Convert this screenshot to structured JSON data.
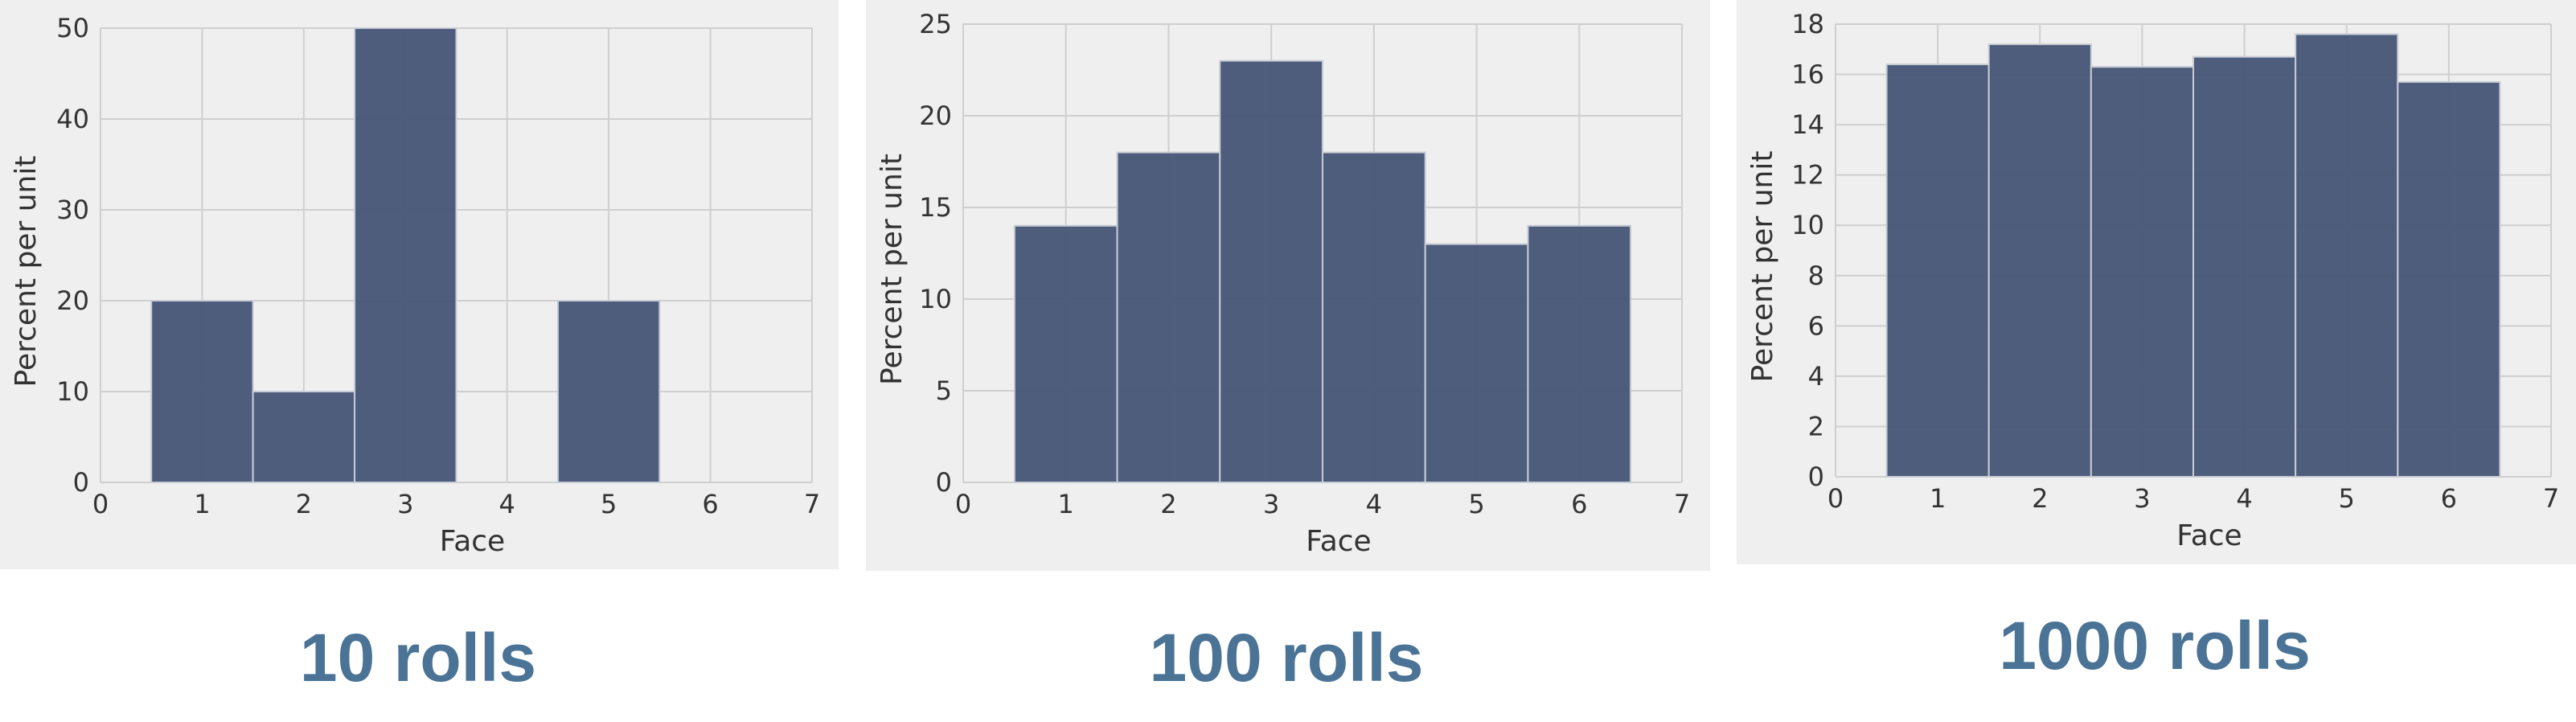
{
  "chart_data": [
    {
      "type": "bar",
      "categories": [
        "1",
        "2",
        "3",
        "4",
        "5",
        "6"
      ],
      "values": [
        20,
        10,
        50,
        0,
        20,
        0
      ],
      "xlabel": "Face",
      "ylabel": "Percent per unit",
      "xlim": [
        0,
        7
      ],
      "ylim": [
        0,
        50
      ],
      "xticks": [
        "0",
        "1",
        "2",
        "3",
        "4",
        "5",
        "6",
        "7"
      ],
      "yticks": [
        "0",
        "10",
        "20",
        "30",
        "40",
        "50"
      ],
      "grid": true,
      "bar_color": "#4a5a78",
      "background": "#efefef",
      "caption": "10 rolls"
    },
    {
      "type": "bar",
      "categories": [
        "1",
        "2",
        "3",
        "4",
        "5",
        "6"
      ],
      "values": [
        14,
        18,
        23,
        18,
        13,
        14
      ],
      "xlabel": "Face",
      "ylabel": "Percent per unit",
      "xlim": [
        0,
        7
      ],
      "ylim": [
        0,
        25
      ],
      "xticks": [
        "0",
        "1",
        "2",
        "3",
        "4",
        "5",
        "6",
        "7"
      ],
      "yticks": [
        "0",
        "5",
        "10",
        "15",
        "20",
        "25"
      ],
      "grid": true,
      "bar_color": "#4a5a78",
      "background": "#efefef",
      "caption": "100 rolls"
    },
    {
      "type": "bar",
      "categories": [
        "1",
        "2",
        "3",
        "4",
        "5",
        "6"
      ],
      "values": [
        16.4,
        17.2,
        16.3,
        16.7,
        17.6,
        15.7
      ],
      "xlabel": "Face",
      "ylabel": "Percent per unit",
      "xlim": [
        0,
        7
      ],
      "ylim": [
        0,
        18
      ],
      "xticks": [
        "0",
        "1",
        "2",
        "3",
        "4",
        "5",
        "6",
        "7"
      ],
      "yticks": [
        "0",
        "2",
        "4",
        "6",
        "8",
        "10",
        "12",
        "14",
        "16",
        "18"
      ],
      "grid": true,
      "bar_color": "#4a5a78",
      "background": "#efefef",
      "caption": "1000 rolls"
    }
  ]
}
